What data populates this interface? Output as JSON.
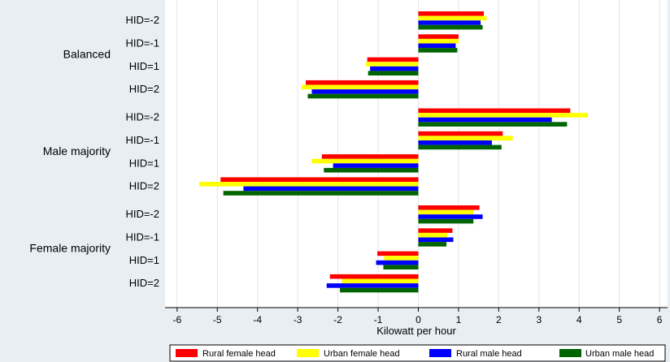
{
  "chart_data": {
    "type": "bar",
    "orientation": "horizontal",
    "xlabel": "Kilowatt per hour",
    "xlim": [
      -6.3,
      6.2
    ],
    "xticks": [
      -6,
      -5,
      -4,
      -3,
      -2,
      -1,
      0,
      1,
      2,
      3,
      4,
      5,
      6
    ],
    "grid": true,
    "legend_position": "bottom",
    "groups": [
      {
        "label": "Balanced",
        "categories": [
          "HID=-2",
          "HID=-1",
          "HID=1",
          "HID=2"
        ],
        "series_values": {
          "rural_female": [
            1.63,
            1.0,
            -1.27,
            -2.8
          ],
          "urban_female": [
            1.7,
            1.0,
            -1.3,
            -2.9
          ],
          "rural_male": [
            1.55,
            0.93,
            -1.2,
            -2.65
          ],
          "urban_male": [
            1.6,
            0.97,
            -1.25,
            -2.75
          ]
        }
      },
      {
        "label": "Male majority",
        "categories": [
          "HID=-2",
          "HID=-1",
          "HID=1",
          "HID=2"
        ],
        "series_values": {
          "rural_female": [
            3.78,
            2.1,
            -2.4,
            -4.92
          ],
          "urban_female": [
            4.22,
            2.35,
            -2.65,
            -5.45
          ],
          "rural_male": [
            3.32,
            1.83,
            -2.12,
            -4.35
          ],
          "urban_male": [
            3.7,
            2.07,
            -2.35,
            -4.85
          ]
        }
      },
      {
        "label": "Female majority",
        "categories": [
          "HID=-2",
          "HID=-1",
          "HID=1",
          "HID=2"
        ],
        "series_values": {
          "rural_female": [
            1.52,
            0.85,
            -1.02,
            -2.2
          ],
          "urban_female": [
            1.37,
            0.72,
            -0.85,
            -1.9
          ],
          "rural_male": [
            1.6,
            0.87,
            -1.05,
            -2.28
          ],
          "urban_male": [
            1.37,
            0.7,
            -0.87,
            -1.95
          ]
        }
      }
    ],
    "series": [
      {
        "key": "rural_female",
        "name": "Rural female head",
        "color": "#ff0000"
      },
      {
        "key": "urban_female",
        "name": "Urban female head",
        "color": "#ffff00"
      },
      {
        "key": "rural_male",
        "name": "Rural male head",
        "color": "#0000ff"
      },
      {
        "key": "urban_male",
        "name": "Urban male head",
        "color": "#006400"
      }
    ]
  }
}
